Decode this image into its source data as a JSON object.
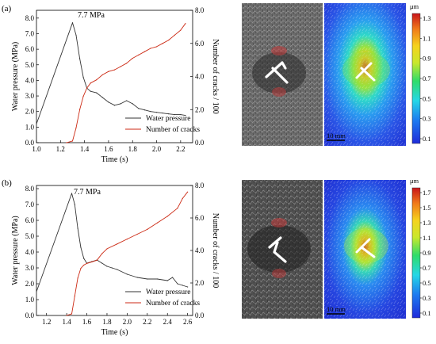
{
  "chart_data": [
    {
      "type": "line",
      "panel_label": "(a)",
      "xlabel": "Time (s)",
      "ylabel_left": "Water pressure (MPa)",
      "ylabel_right": "Number of cracks / 100",
      "xlim": [
        1.0,
        2.3
      ],
      "ylim_left": [
        0.0,
        8.5
      ],
      "ylim_right": [
        0.0,
        8.0
      ],
      "x_ticks": [
        "1.0",
        "1.2",
        "1.4",
        "1.6",
        "1.8",
        "2.0",
        "2.2"
      ],
      "y_ticks_left": [
        "0.0",
        "1.0",
        "2.0",
        "3.0",
        "4.0",
        "5.0",
        "6.0",
        "7.0",
        "8.0"
      ],
      "y_ticks_right": [
        "0.0",
        "2.0",
        "4.0",
        "6.0",
        "8.0"
      ],
      "annotation": "7.7 MPa",
      "legend_position": "bottom-right",
      "series": [
        {
          "name": "Water pressure",
          "axis": "left",
          "color": "#333333",
          "x": [
            1.0,
            1.3,
            1.33,
            1.36,
            1.39,
            1.42,
            1.45,
            1.5,
            1.55,
            1.6,
            1.65,
            1.7,
            1.75,
            1.8,
            1.85,
            1.9,
            1.95,
            2.0,
            2.05,
            2.1,
            2.15,
            2.2,
            2.24
          ],
          "y": [
            1.2,
            7.7,
            6.9,
            5.4,
            4.2,
            3.5,
            3.3,
            3.2,
            2.9,
            2.6,
            2.4,
            2.5,
            2.7,
            2.5,
            2.2,
            2.1,
            2.0,
            1.95,
            1.9,
            1.85,
            1.8,
            1.8,
            1.75
          ]
        },
        {
          "name": "Number of cracks",
          "axis": "right",
          "color": "#cc2a14",
          "x": [
            1.25,
            1.3,
            1.33,
            1.36,
            1.39,
            1.42,
            1.45,
            1.5,
            1.55,
            1.6,
            1.65,
            1.7,
            1.75,
            1.8,
            1.85,
            1.9,
            1.95,
            2.0,
            2.05,
            2.1,
            2.15,
            2.2,
            2.24
          ],
          "y": [
            0.0,
            0.1,
            0.9,
            2.0,
            2.8,
            3.3,
            3.6,
            3.8,
            4.1,
            4.3,
            4.4,
            4.6,
            4.8,
            5.1,
            5.3,
            5.5,
            5.7,
            5.8,
            6.0,
            6.2,
            6.5,
            6.8,
            7.2
          ]
        }
      ],
      "colorbar": {
        "unit": "μm",
        "ticks": [
          "1.3",
          "1.1",
          "0.9",
          "0.7",
          "0.5",
          "0.3",
          "0.1"
        ]
      },
      "scale_bar": "10 mm"
    },
    {
      "type": "line",
      "panel_label": "(b)",
      "xlabel": "Time (s)",
      "ylabel_left": "Water pressure (MPa)",
      "ylabel_right": "Number of cracks / 100",
      "xlim": [
        1.1,
        2.65
      ],
      "ylim_left": [
        0.0,
        8.2
      ],
      "ylim_right": [
        0.0,
        8.0
      ],
      "x_ticks": [
        "1.2",
        "1.4",
        "1.6",
        "1.8",
        "2.0",
        "2.2",
        "2.4",
        "2.6"
      ],
      "y_ticks_left": [
        "0.0",
        "1.0",
        "2.0",
        "3.0",
        "4.0",
        "5.0",
        "6.0",
        "7.0",
        "8.0"
      ],
      "y_ticks_right": [
        "0.0",
        "2.0",
        "4.0",
        "6.0",
        "8.0"
      ],
      "annotation": "7.7 MPa",
      "legend_position": "bottom-right",
      "series": [
        {
          "name": "Water pressure",
          "axis": "left",
          "color": "#333333",
          "x": [
            1.1,
            1.45,
            1.48,
            1.51,
            1.54,
            1.57,
            1.6,
            1.65,
            1.7,
            1.75,
            1.8,
            1.85,
            1.9,
            2.0,
            2.1,
            2.2,
            2.3,
            2.4,
            2.45,
            2.5,
            2.55,
            2.6
          ],
          "y": [
            1.5,
            7.7,
            7.0,
            5.5,
            4.3,
            3.6,
            3.3,
            3.4,
            3.5,
            3.3,
            3.1,
            3.0,
            2.9,
            2.6,
            2.4,
            2.3,
            2.3,
            2.2,
            2.4,
            2.0,
            1.9,
            1.8
          ]
        },
        {
          "name": "Number of cracks",
          "axis": "right",
          "color": "#cc2a14",
          "x": [
            1.4,
            1.45,
            1.48,
            1.51,
            1.54,
            1.57,
            1.6,
            1.65,
            1.7,
            1.75,
            1.8,
            1.9,
            2.0,
            2.1,
            2.2,
            2.3,
            2.4,
            2.5,
            2.55,
            2.6
          ],
          "y": [
            0.0,
            0.1,
            1.2,
            2.3,
            2.9,
            3.1,
            3.2,
            3.3,
            3.4,
            3.8,
            4.1,
            4.4,
            4.7,
            5.0,
            5.3,
            5.7,
            6.1,
            6.6,
            7.2,
            7.6
          ]
        }
      ],
      "colorbar": {
        "unit": "μm",
        "ticks": [
          "1.7",
          "1.5",
          "1.3",
          "1.1",
          "0.9",
          "0.7",
          "0.5",
          "0.3",
          "0.1"
        ]
      },
      "scale_bar": "10 mm"
    }
  ]
}
